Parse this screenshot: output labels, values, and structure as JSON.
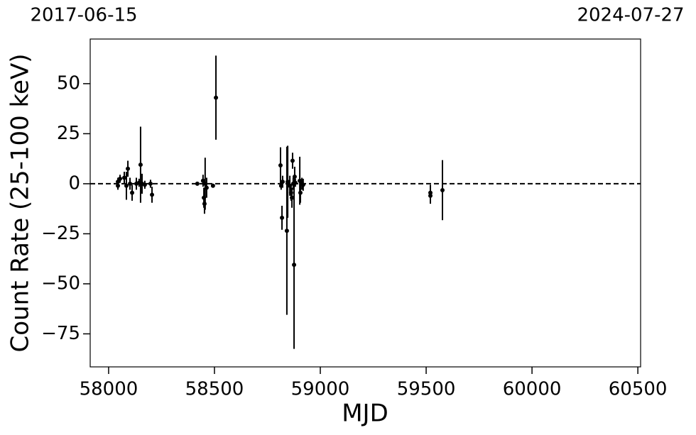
{
  "chart_data": {
    "type": "errorbar",
    "date_start": "2017-06-15",
    "date_end": "2024-07-27",
    "xlabel": "MJD",
    "ylabel": "Count Rate (25-100 keV)",
    "x": [
      58044,
      58044,
      58054,
      58074,
      58084,
      58091,
      58101,
      58111,
      58131,
      58144,
      58151,
      58158,
      58171,
      58198,
      58205,
      58419,
      58446,
      58450,
      58453,
      58456,
      58463,
      58493,
      58507,
      58812,
      58815,
      58819,
      58822,
      58842,
      58846,
      58856,
      58862,
      58866,
      58869,
      58872,
      58876,
      58879,
      58882,
      58903,
      58906,
      58913,
      58919,
      59520,
      59520,
      59577
    ],
    "values": [
      1,
      -1,
      2.5,
      3,
      -1,
      7.5,
      0,
      -4.5,
      0,
      0.5,
      9.5,
      0,
      -0.5,
      0,
      -5.5,
      0,
      1.5,
      -7,
      -10,
      0,
      -2,
      -1,
      43,
      9.2,
      -1,
      -17,
      1,
      -23.5,
      1,
      -1,
      -4.5,
      -7,
      11.5,
      0,
      -40.5,
      3.5,
      0.5,
      1.5,
      -4.5,
      0,
      -0.5,
      -4.5,
      -6,
      -3.2
    ],
    "errors": [
      2,
      2,
      2,
      3,
      7,
      4,
      3,
      4,
      3,
      2,
      19,
      5,
      2,
      2,
      4,
      0.5,
      3,
      5,
      5,
      13,
      5,
      1,
      21,
      9,
      2,
      6,
      3,
      42,
      18,
      5,
      4,
      5,
      4,
      3,
      42,
      5,
      2,
      12,
      5,
      3,
      3,
      4,
      4,
      15
    ],
    "color": "#000000",
    "hline": 0,
    "xlim": [
      57913,
      60513
    ],
    "ylim": [
      -91.5,
      72.3
    ],
    "xticks": [
      58000,
      58500,
      59000,
      59500,
      60000,
      60500
    ],
    "yticks": [
      {
        "value": -75,
        "label": "−75"
      },
      {
        "value": -50,
        "label": "−50"
      },
      {
        "value": -25,
        "label": "−25"
      },
      0,
      25,
      50
    ]
  }
}
